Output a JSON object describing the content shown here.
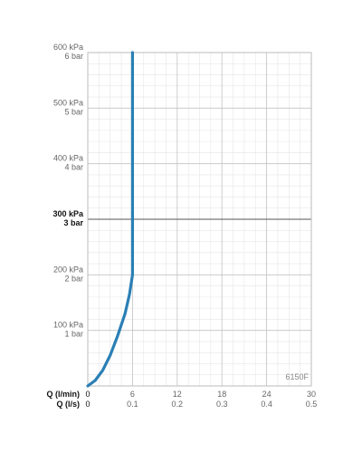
{
  "chart_data": {
    "type": "line",
    "title": "",
    "model_label": "6150F",
    "x_axis": {
      "title_primary": "Q (l/min)",
      "title_secondary": "Q (l/s)",
      "ticks_primary": [
        "0",
        "6",
        "12",
        "18",
        "24",
        "30"
      ],
      "ticks_secondary": [
        "0",
        "0.1",
        "0.2",
        "0.3",
        "0.4",
        "0.5"
      ],
      "xlim": [
        0,
        30
      ]
    },
    "y_axis": {
      "ticks": [
        {
          "value": 100,
          "kpa": "100 kPa",
          "bar": "1 bar",
          "bold": false
        },
        {
          "value": 200,
          "kpa": "200 kPa",
          "bar": "2 bar",
          "bold": false
        },
        {
          "value": 300,
          "kpa": "300 kPa",
          "bar": "3 bar",
          "bold": true
        },
        {
          "value": 400,
          "kpa": "400 kPa",
          "bar": "4 bar",
          "bold": false
        },
        {
          "value": 500,
          "kpa": "500 kPa",
          "bar": "5 bar",
          "bold": false
        },
        {
          "value": 600,
          "kpa": "600 kPa",
          "bar": "6 bar",
          "bold": false
        }
      ],
      "ylim": [
        0,
        600
      ]
    },
    "grid": true,
    "series": [
      {
        "color": "#2a7fb5",
        "points": [
          [
            0,
            0
          ],
          [
            1,
            10
          ],
          [
            2,
            28
          ],
          [
            3,
            55
          ],
          [
            4,
            90
          ],
          [
            5,
            130
          ],
          [
            5.6,
            165
          ],
          [
            6,
            200
          ],
          [
            6,
            300
          ],
          [
            6,
            400
          ],
          [
            6,
            500
          ],
          [
            6,
            600
          ]
        ]
      }
    ]
  }
}
